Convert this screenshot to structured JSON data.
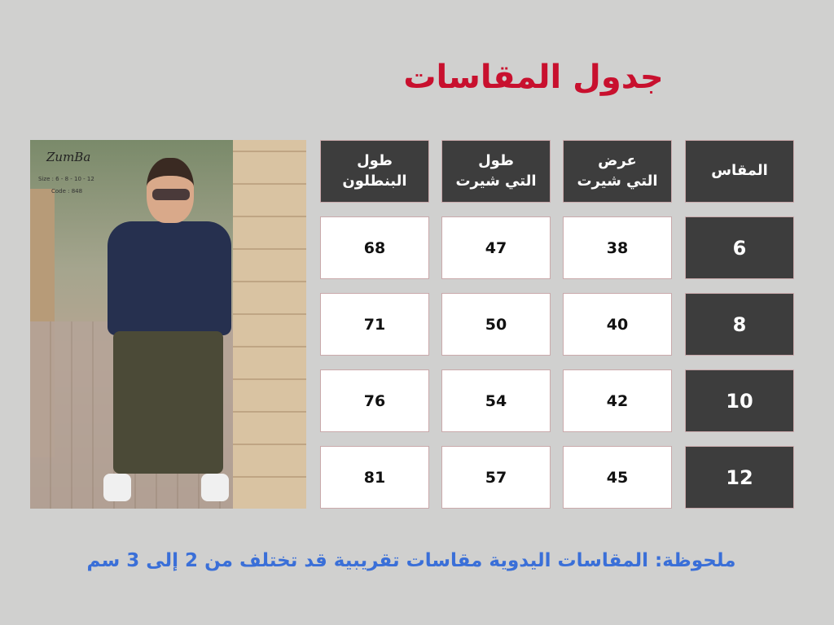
{
  "title": "جدول المقاسات",
  "photo": {
    "brand": "ZumBa",
    "size_text": "Size : 6 - 8 - 10 - 12",
    "code_text": "Code : 848"
  },
  "table": {
    "headers": [
      "المقاس",
      "عرض\nالتي شيرت",
      "طول\nالتي شيرت",
      "طول\nالبنطلون"
    ],
    "rows": [
      {
        "size": "6",
        "width": "38",
        "shirt_length": "47",
        "pants_length": "68"
      },
      {
        "size": "8",
        "width": "40",
        "shirt_length": "50",
        "pants_length": "71"
      },
      {
        "size": "10",
        "width": "42",
        "shirt_length": "54",
        "pants_length": "76"
      },
      {
        "size": "12",
        "width": "45",
        "shirt_length": "57",
        "pants_length": "81"
      }
    ]
  },
  "note": "ملحوظة: المقاسات اليدوية مقاسات تقريبية قد تختلف من 2 إلى 3 سم",
  "colors": {
    "title": "#c8102e",
    "note": "#3a6fd8",
    "header_bg": "#3d3d3d",
    "background": "#d0d0cf"
  }
}
